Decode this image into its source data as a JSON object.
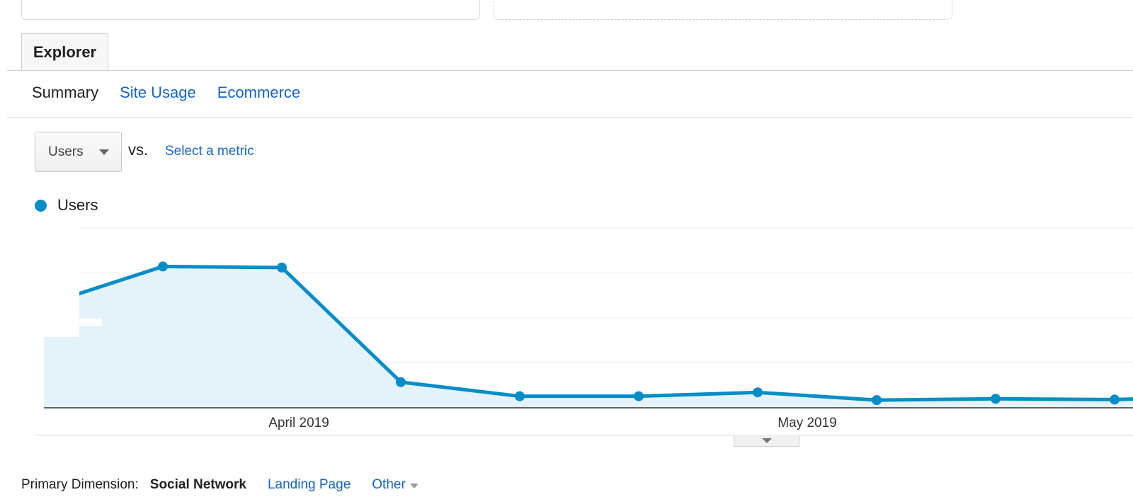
{
  "tabs": {
    "explorer": "Explorer"
  },
  "subnav": {
    "summary": "Summary",
    "site_usage": "Site Usage",
    "ecommerce": "Ecommerce"
  },
  "metric": {
    "selected": "Users",
    "vs": "vs.",
    "select_link": "Select a metric"
  },
  "legend": {
    "series": "Users"
  },
  "primary_dimension": {
    "label": "Primary Dimension:",
    "active": "Social Network",
    "options": [
      "Landing Page"
    ],
    "other": "Other"
  },
  "colors": {
    "line": "#058dc7",
    "fill": "#e4f2fa",
    "link": "#1565c0"
  },
  "chart_data": {
    "type": "area",
    "series": [
      {
        "name": "Users",
        "values": [
          40,
          55,
          54.6,
          10,
          4.5,
          4.5,
          6,
          3,
          3.5,
          3.2,
          4.5
        ]
      }
    ],
    "x": [
      0,
      1,
      2,
      3,
      4,
      5,
      6,
      7,
      8,
      9,
      10
    ],
    "x_tick_labels": [
      "April 2019",
      "May 2019"
    ],
    "ylim": [
      0,
      70
    ],
    "grid": true,
    "legend_position": "top-left"
  }
}
